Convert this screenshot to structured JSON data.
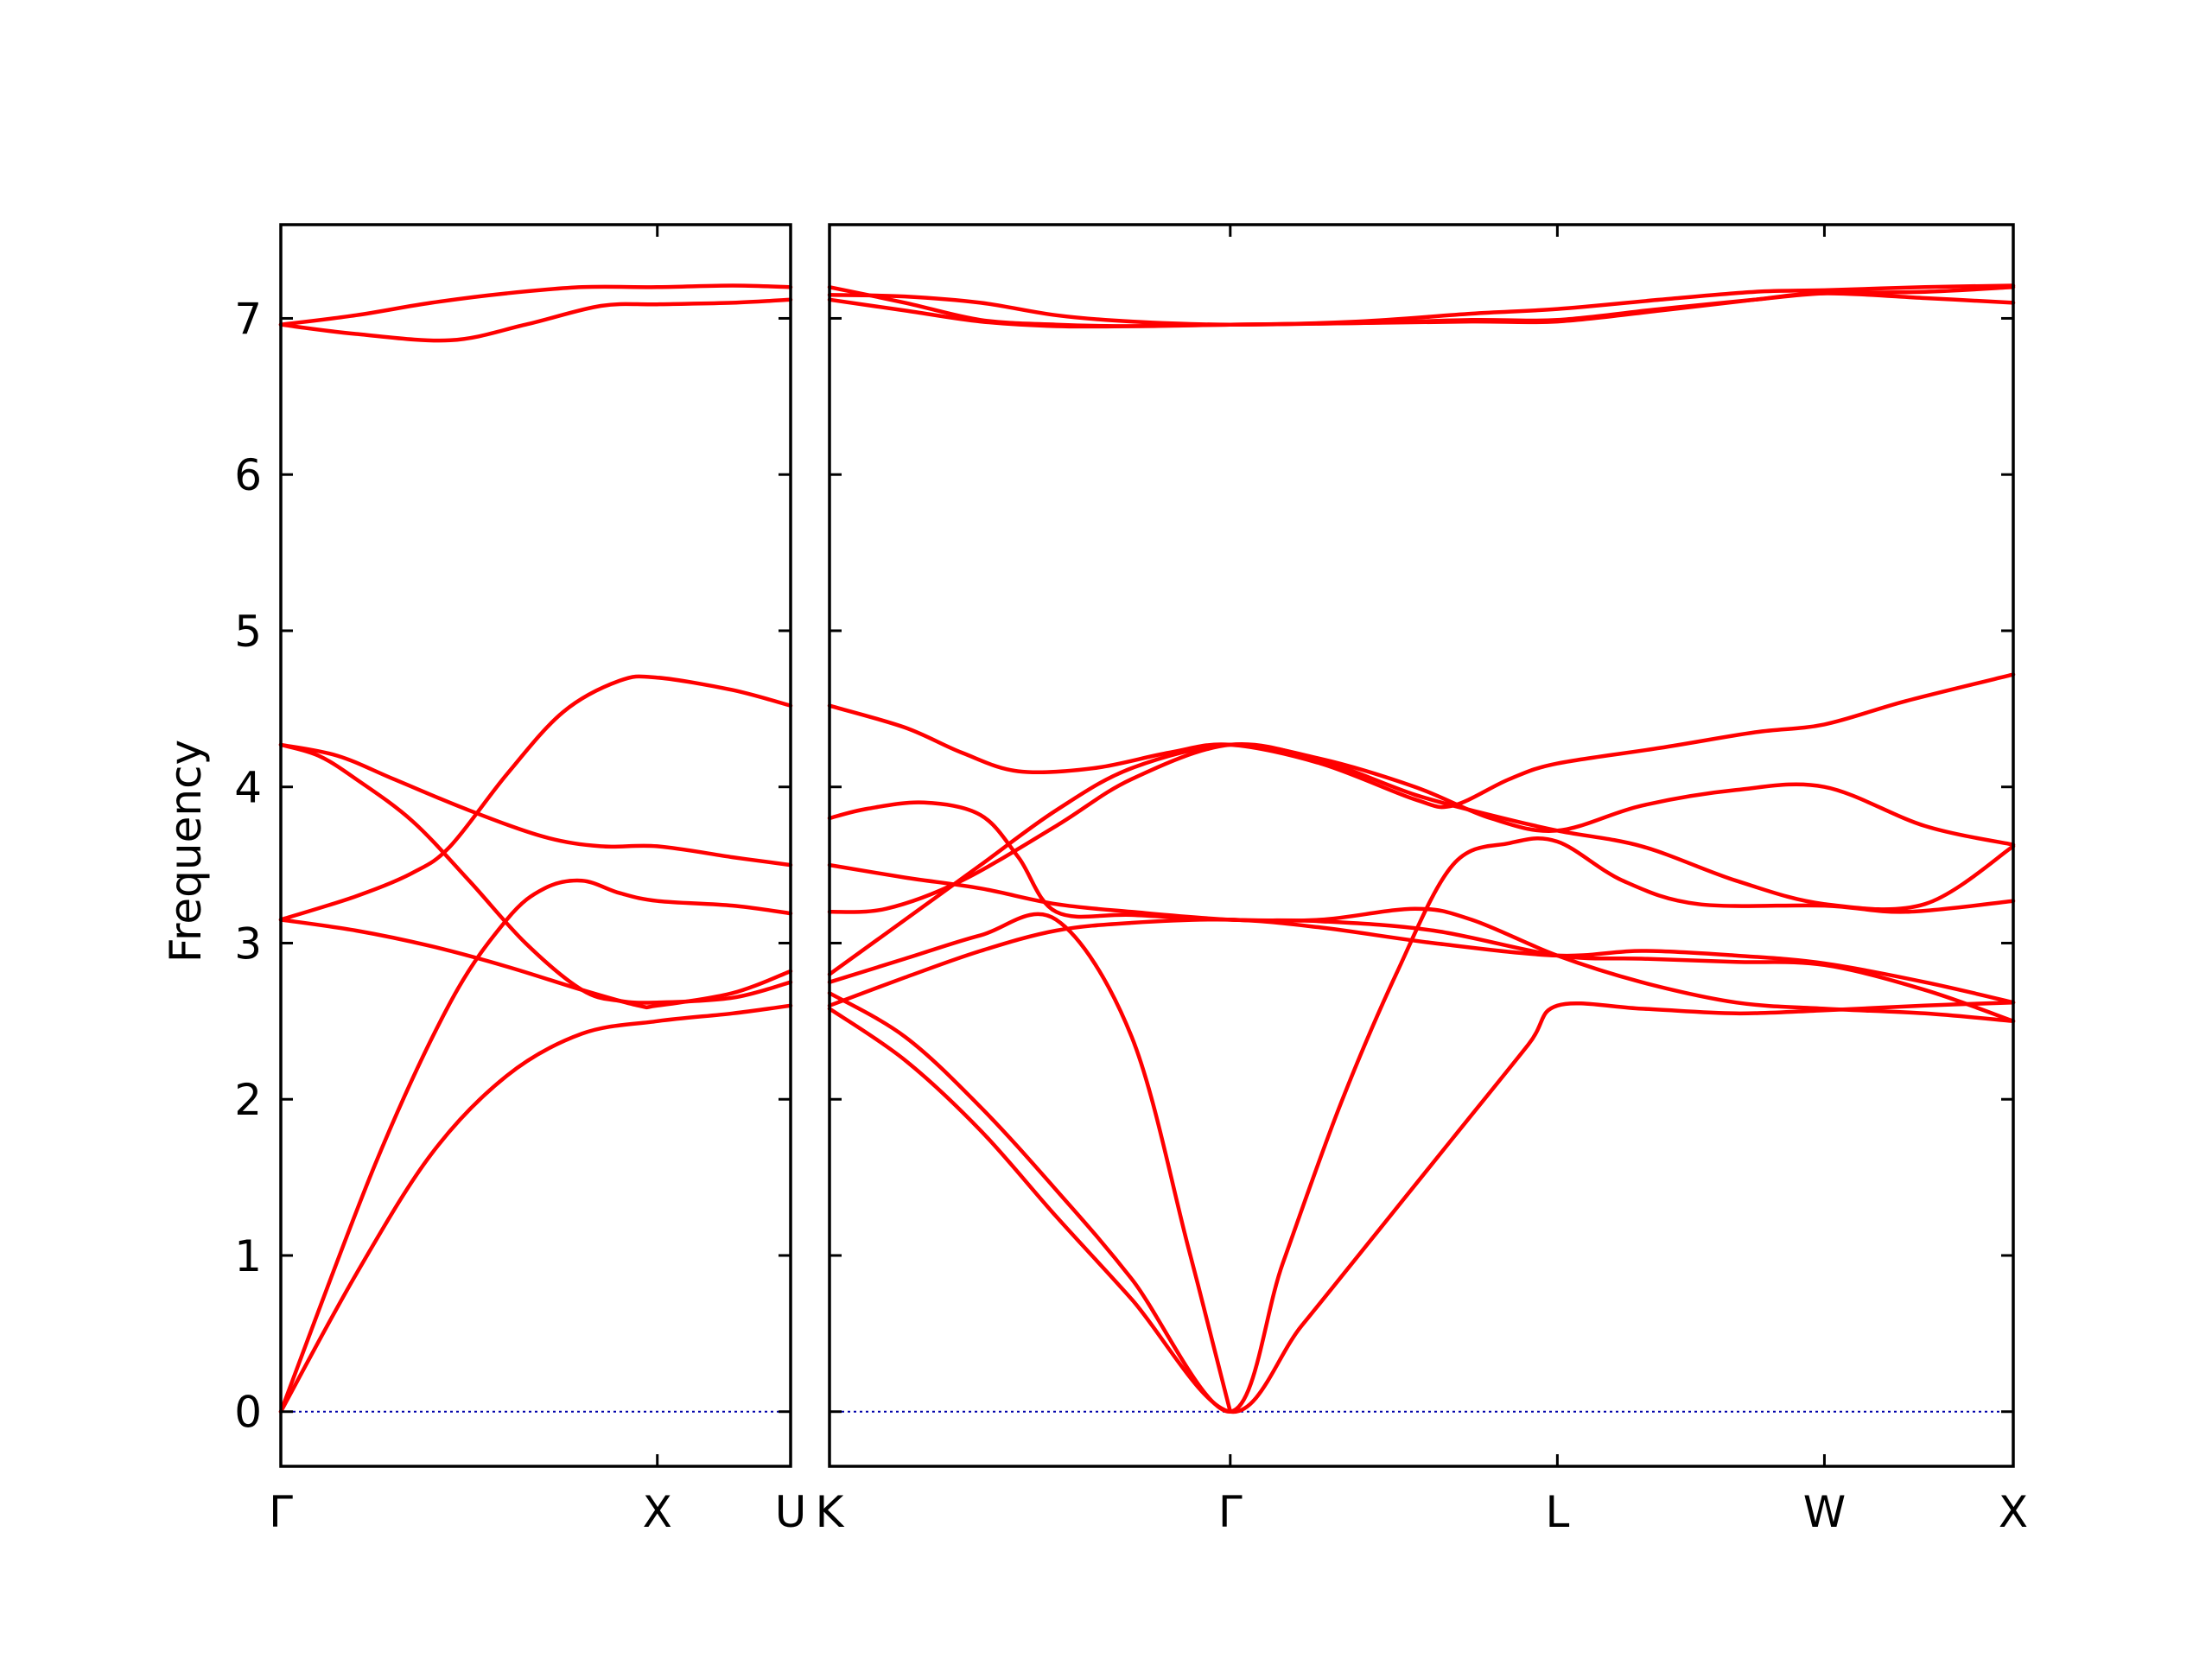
{
  "chart_data": {
    "type": "line",
    "title": "",
    "ylabel": "Frequency",
    "ylim": [
      -0.35,
      7.6
    ],
    "yticks": [
      0,
      1,
      2,
      3,
      4,
      5,
      6,
      7
    ],
    "line_color": "#ff0000",
    "zero_line_color": "#0000aa",
    "grid": false,
    "panels": [
      {
        "segments": [
          {
            "from": "Γ",
            "to": "X",
            "length": 1.0
          },
          {
            "from": "X",
            "to": "U",
            "length": 0.354
          }
        ],
        "tick_labels": [
          "Γ",
          "X",
          "U"
        ],
        "tick_positions": [
          0,
          1.0,
          1.354
        ],
        "bands": [
          [
            [
              0,
              0
            ],
            [
              0.25,
              1.58
            ],
            [
              0.45,
              2.62
            ],
            [
              0.6,
              3.15
            ],
            [
              0.7,
              3.35
            ],
            [
              0.8,
              3.4
            ],
            [
              0.9,
              3.32
            ],
            [
              1.0,
              3.27
            ],
            [
              1.2,
              3.24
            ],
            [
              1.354,
              3.19
            ]
          ],
          [
            [
              0,
              0
            ],
            [
              0.2,
              0.88
            ],
            [
              0.4,
              1.65
            ],
            [
              0.6,
              2.15
            ],
            [
              0.8,
              2.42
            ],
            [
              1.0,
              2.5
            ],
            [
              1.2,
              2.55
            ],
            [
              1.354,
              2.6
            ]
          ],
          [
            [
              0,
              3.15
            ],
            [
              0.2,
              3.3
            ],
            [
              0.35,
              3.45
            ],
            [
              0.45,
              3.62
            ],
            [
              0.6,
              4.08
            ],
            [
              0.75,
              4.48
            ],
            [
              0.9,
              4.68
            ],
            [
              1.0,
              4.7
            ],
            [
              1.2,
              4.62
            ],
            [
              1.354,
              4.52
            ]
          ],
          [
            [
              0,
              4.27
            ],
            [
              0.1,
              4.2
            ],
            [
              0.2,
              4.05
            ],
            [
              0.35,
              3.78
            ],
            [
              0.5,
              3.4
            ],
            [
              0.65,
              3.0
            ],
            [
              0.8,
              2.7
            ],
            [
              0.9,
              2.63
            ],
            [
              1.0,
              2.62
            ],
            [
              1.2,
              2.65
            ],
            [
              1.354,
              2.75
            ]
          ],
          [
            [
              0,
              4.27
            ],
            [
              0.15,
              4.2
            ],
            [
              0.3,
              4.05
            ],
            [
              0.5,
              3.85
            ],
            [
              0.7,
              3.68
            ],
            [
              0.85,
              3.62
            ],
            [
              1.0,
              3.62
            ],
            [
              1.2,
              3.55
            ],
            [
              1.354,
              3.5
            ]
          ],
          [
            [
              0,
              3.15
            ],
            [
              0.2,
              3.08
            ],
            [
              0.4,
              2.98
            ],
            [
              0.6,
              2.85
            ],
            [
              0.8,
              2.7
            ],
            [
              0.95,
              2.6
            ],
            [
              1.0,
              2.6
            ],
            [
              1.2,
              2.68
            ],
            [
              1.354,
              2.82
            ]
          ],
          [
            [
              0,
              6.96
            ],
            [
              0.2,
              7.02
            ],
            [
              0.4,
              7.1
            ],
            [
              0.6,
              7.16
            ],
            [
              0.8,
              7.2
            ],
            [
              1.0,
              7.2
            ],
            [
              1.2,
              7.21
            ],
            [
              1.354,
              7.2
            ]
          ],
          [
            [
              0,
              6.96
            ],
            [
              0.2,
              6.9
            ],
            [
              0.45,
              6.86
            ],
            [
              0.65,
              6.96
            ],
            [
              0.85,
              7.08
            ],
            [
              1.0,
              7.09
            ],
            [
              1.2,
              7.1
            ],
            [
              1.354,
              7.12
            ]
          ]
        ]
      },
      {
        "segments": [
          {
            "from": "K",
            "to": "Γ",
            "length": 1.061
          },
          {
            "from": "Γ",
            "to": "L",
            "length": 0.866
          },
          {
            "from": "L",
            "to": "W",
            "length": 0.707
          },
          {
            "from": "W",
            "to": "X",
            "length": 0.5
          }
        ],
        "tick_labels": [
          "K",
          "Γ",
          "L",
          "W",
          "X"
        ],
        "tick_positions": [
          0,
          1.061,
          1.927,
          2.634,
          3.134
        ],
        "bands": [
          [
            [
              0,
              2.58
            ],
            [
              0.2,
              2.25
            ],
            [
              0.4,
              1.8
            ],
            [
              0.6,
              1.25
            ],
            [
              0.8,
              0.72
            ],
            [
              1.061,
              0
            ],
            [
              1.25,
              0.55
            ],
            [
              1.45,
              1.15
            ],
            [
              1.65,
              1.75
            ],
            [
              1.85,
              2.35
            ],
            [
              1.927,
              2.6
            ],
            [
              2.15,
              2.58
            ],
            [
              2.4,
              2.55
            ],
            [
              2.634,
              2.57
            ],
            [
              2.9,
              2.6
            ],
            [
              3.134,
              2.62
            ]
          ],
          [
            [
              0,
              2.68
            ],
            [
              0.2,
              2.4
            ],
            [
              0.4,
              1.95
            ],
            [
              0.6,
              1.42
            ],
            [
              0.8,
              0.85
            ],
            [
              1.061,
              0
            ],
            [
              1.2,
              0.95
            ],
            [
              1.35,
              1.95
            ],
            [
              1.5,
              2.8
            ],
            [
              1.65,
              3.5
            ],
            [
              1.8,
              3.64
            ],
            [
              1.927,
              3.65
            ],
            [
              2.1,
              3.4
            ],
            [
              2.3,
              3.25
            ],
            [
              2.634,
              3.24
            ],
            [
              2.85,
              3.2
            ],
            [
              3.134,
              3.27
            ]
          ],
          [
            [
              0,
              2.75
            ],
            [
              0.2,
              2.9
            ],
            [
              0.4,
              3.05
            ],
            [
              0.6,
              3.15
            ],
            [
              0.8,
              2.4
            ],
            [
              0.95,
              1.05
            ],
            [
              1.061,
              0
            ]
          ],
          [
            [
              0,
              2.6
            ],
            [
              0.2,
              2.78
            ],
            [
              0.4,
              2.95
            ],
            [
              0.6,
              3.08
            ],
            [
              0.8,
              3.13
            ],
            [
              1.061,
              3.15
            ],
            [
              1.3,
              3.1
            ],
            [
              1.6,
              3.0
            ],
            [
              1.927,
              2.92
            ],
            [
              2.15,
              2.95
            ],
            [
              2.4,
              2.92
            ],
            [
              2.634,
              2.87
            ],
            [
              2.9,
              2.75
            ],
            [
              3.134,
              2.62
            ]
          ],
          [
            [
              0,
              3.8
            ],
            [
              0.1,
              3.86
            ],
            [
              0.25,
              3.9
            ],
            [
              0.4,
              3.82
            ],
            [
              0.5,
              3.55
            ],
            [
              0.6,
              3.2
            ],
            [
              0.8,
              3.18
            ],
            [
              1.061,
              3.15
            ],
            [
              1.3,
              3.15
            ],
            [
              1.55,
              3.22
            ],
            [
              1.7,
              3.15
            ],
            [
              1.927,
              2.92
            ],
            [
              2.15,
              2.75
            ],
            [
              2.4,
              2.62
            ],
            [
              2.634,
              2.58
            ],
            [
              2.9,
              2.55
            ],
            [
              3.134,
              2.5
            ]
          ],
          [
            [
              0,
              3.2
            ],
            [
              0.15,
              3.22
            ],
            [
              0.35,
              3.4
            ],
            [
              0.6,
              3.75
            ],
            [
              0.8,
              4.05
            ],
            [
              1.061,
              4.27
            ],
            [
              1.3,
              4.17
            ],
            [
              1.55,
              3.95
            ],
            [
              1.75,
              3.82
            ],
            [
              1.927,
              3.72
            ],
            [
              2.15,
              3.62
            ],
            [
              2.4,
              3.4
            ],
            [
              2.634,
              3.25
            ],
            [
              2.9,
              3.25
            ],
            [
              3.134,
              3.62
            ]
          ],
          [
            [
              0,
              2.8
            ],
            [
              0.2,
              3.15
            ],
            [
              0.4,
              3.5
            ],
            [
              0.6,
              3.85
            ],
            [
              0.8,
              4.12
            ],
            [
              1.061,
              4.27
            ],
            [
              1.3,
              4.18
            ],
            [
              1.55,
              4.0
            ],
            [
              1.75,
              3.8
            ],
            [
              1.927,
              3.72
            ],
            [
              2.15,
              3.88
            ],
            [
              2.4,
              3.98
            ],
            [
              2.634,
              4.0
            ],
            [
              2.9,
              3.75
            ],
            [
              3.134,
              3.63
            ]
          ],
          [
            [
              0,
              3.5
            ],
            [
              0.2,
              3.42
            ],
            [
              0.4,
              3.35
            ],
            [
              0.6,
              3.25
            ],
            [
              0.8,
              3.2
            ],
            [
              1.061,
              3.15
            ],
            [
              1.3,
              3.14
            ],
            [
              1.6,
              3.08
            ],
            [
              1.927,
              2.92
            ],
            [
              2.15,
              2.9
            ],
            [
              2.4,
              2.88
            ],
            [
              2.634,
              2.86
            ],
            [
              2.9,
              2.7
            ],
            [
              3.134,
              2.5
            ]
          ],
          [
            [
              0,
              4.52
            ],
            [
              0.2,
              4.38
            ],
            [
              0.35,
              4.22
            ],
            [
              0.5,
              4.1
            ],
            [
              0.7,
              4.12
            ],
            [
              0.9,
              4.22
            ],
            [
              1.061,
              4.27
            ],
            [
              1.3,
              4.15
            ],
            [
              1.55,
              3.92
            ],
            [
              1.65,
              3.88
            ],
            [
              1.8,
              4.05
            ],
            [
              1.927,
              4.15
            ],
            [
              2.2,
              4.25
            ],
            [
              2.45,
              4.35
            ],
            [
              2.634,
              4.4
            ],
            [
              2.85,
              4.55
            ],
            [
              3.134,
              4.72
            ]
          ],
          [
            [
              0,
              7.2
            ],
            [
              0.2,
              7.1
            ],
            [
              0.4,
              6.99
            ],
            [
              0.6,
              6.96
            ],
            [
              0.8,
              6.95
            ],
            [
              1.061,
              6.96
            ],
            [
              1.4,
              6.97
            ],
            [
              1.7,
              6.98
            ],
            [
              1.927,
              6.98
            ],
            [
              2.2,
              7.05
            ],
            [
              2.45,
              7.12
            ],
            [
              2.634,
              7.16
            ],
            [
              2.9,
              7.13
            ],
            [
              3.134,
              7.1
            ]
          ],
          [
            [
              0,
              7.15
            ],
            [
              0.2,
              7.14
            ],
            [
              0.4,
              7.1
            ],
            [
              0.6,
              7.02
            ],
            [
              0.8,
              6.98
            ],
            [
              1.061,
              6.96
            ],
            [
              1.4,
              6.98
            ],
            [
              1.7,
              7.03
            ],
            [
              1.927,
              7.06
            ],
            [
              2.2,
              7.12
            ],
            [
              2.45,
              7.17
            ],
            [
              2.634,
              7.18
            ],
            [
              2.9,
              7.2
            ],
            [
              3.134,
              7.21
            ]
          ],
          [
            [
              0,
              7.12
            ],
            [
              0.2,
              7.05
            ],
            [
              0.4,
              6.98
            ],
            [
              0.6,
              6.95
            ],
            [
              0.8,
              6.95
            ],
            [
              1.061,
              6.96
            ],
            [
              1.4,
              6.97
            ],
            [
              1.7,
              6.99
            ],
            [
              1.927,
              6.99
            ],
            [
              2.2,
              7.06
            ],
            [
              2.45,
              7.12
            ],
            [
              2.634,
              7.16
            ],
            [
              2.9,
              7.17
            ],
            [
              3.134,
              7.2
            ]
          ]
        ]
      }
    ]
  }
}
